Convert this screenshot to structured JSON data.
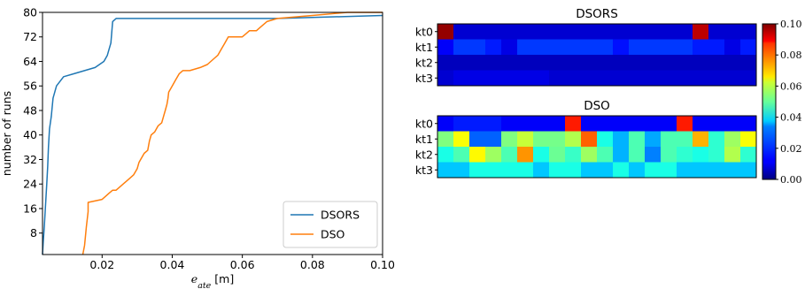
{
  "colors": {
    "dsors": "#1f77b4",
    "dso": "#ff7f0e",
    "axis": "#000000",
    "legend_border": "#cccccc"
  },
  "chart_data": [
    {
      "type": "line",
      "xlabel_math": "e",
      "xlabel_sub": "ate",
      "xlabel_unit": " [m]",
      "ylabel": "number of runs",
      "xlim": [
        0.003,
        0.1
      ],
      "ylim": [
        1,
        80
      ],
      "xticks": [
        0.02,
        0.04,
        0.06,
        0.08,
        0.1
      ],
      "xtick_labels": [
        "0.02",
        "0.04",
        "0.06",
        "0.08",
        "0.10"
      ],
      "yticks": [
        8,
        16,
        24,
        32,
        40,
        48,
        56,
        64,
        72,
        80
      ],
      "ytick_labels": [
        "8",
        "16",
        "24",
        "32",
        "40",
        "48",
        "56",
        "64",
        "72",
        "80"
      ],
      "grid": false,
      "legend_position": "bottom-right",
      "series": [
        {
          "name": "DSORS",
          "x": [
            0.003,
            0.0032,
            0.0035,
            0.0038,
            0.004,
            0.0042,
            0.0045,
            0.0047,
            0.005,
            0.0055,
            0.006,
            0.007,
            0.009,
            0.012,
            0.018,
            0.0205,
            0.021,
            0.0215,
            0.022,
            0.0225,
            0.023,
            0.024,
            0.05,
            0.07,
            0.1
          ],
          "y": [
            1,
            5,
            10,
            16,
            20,
            24,
            30,
            36,
            42,
            46,
            52,
            56,
            59,
            60,
            62,
            64,
            65,
            66,
            68,
            70,
            77,
            78,
            78,
            78,
            79
          ]
        },
        {
          "name": "DSO",
          "x": [
            0.0145,
            0.015,
            0.0155,
            0.016,
            0.016,
            0.02,
            0.021,
            0.022,
            0.023,
            0.024,
            0.026,
            0.027,
            0.028,
            0.029,
            0.0295,
            0.03,
            0.0305,
            0.031,
            0.032,
            0.033,
            0.0335,
            0.034,
            0.035,
            0.036,
            0.037,
            0.0375,
            0.038,
            0.0385,
            0.0388,
            0.039,
            0.04,
            0.041,
            0.042,
            0.043,
            0.045,
            0.048,
            0.05,
            0.052,
            0.053,
            0.054,
            0.055,
            0.056,
            0.06,
            0.061,
            0.062,
            0.064,
            0.065,
            0.067,
            0.07,
            0.08,
            0.09,
            0.1
          ],
          "y": [
            1,
            4,
            10,
            15,
            18,
            19,
            20,
            21,
            22,
            22,
            24,
            25,
            26,
            27,
            28,
            29,
            31,
            32,
            34,
            35,
            38,
            40,
            41,
            43,
            44,
            46,
            48,
            50,
            52,
            54,
            56,
            58,
            60,
            61,
            61,
            62,
            63,
            65,
            66,
            68,
            70,
            72,
            72,
            73,
            74,
            74,
            75,
            77,
            78,
            79,
            80,
            80
          ]
        }
      ]
    },
    {
      "type": "heatmap",
      "title": "DSORS",
      "rows": [
        "kt0",
        "kt1",
        "kt2",
        "kt3"
      ],
      "columns": 20,
      "values": [
        [
          0.098,
          0.008,
          0.008,
          0.008,
          0.008,
          0.008,
          0.008,
          0.008,
          0.008,
          0.008,
          0.008,
          0.008,
          0.008,
          0.008,
          0.008,
          0.008,
          0.094,
          0.008,
          0.008,
          0.008
        ],
        [
          0.012,
          0.018,
          0.018,
          0.015,
          0.01,
          0.018,
          0.018,
          0.018,
          0.018,
          0.018,
          0.018,
          0.014,
          0.018,
          0.018,
          0.018,
          0.018,
          0.015,
          0.015,
          0.01,
          0.015
        ],
        [
          0.006,
          0.006,
          0.006,
          0.006,
          0.006,
          0.006,
          0.006,
          0.006,
          0.006,
          0.006,
          0.006,
          0.006,
          0.006,
          0.006,
          0.006,
          0.006,
          0.006,
          0.006,
          0.006,
          0.006
        ],
        [
          0.008,
          0.01,
          0.01,
          0.01,
          0.01,
          0.01,
          0.01,
          0.008,
          0.008,
          0.008,
          0.008,
          0.008,
          0.008,
          0.008,
          0.008,
          0.008,
          0.008,
          0.008,
          0.008,
          0.008
        ]
      ]
    },
    {
      "type": "heatmap",
      "title": "DSO",
      "rows": [
        "kt0",
        "kt1",
        "kt2",
        "kt3"
      ],
      "columns": 20,
      "values": [
        [
          0.012,
          0.015,
          0.015,
          0.015,
          0.012,
          0.012,
          0.012,
          0.012,
          0.085,
          0.012,
          0.012,
          0.012,
          0.012,
          0.012,
          0.012,
          0.085,
          0.012,
          0.012,
          0.012,
          0.012
        ],
        [
          0.05,
          0.062,
          0.022,
          0.022,
          0.05,
          0.057,
          0.049,
          0.049,
          0.055,
          0.078,
          0.04,
          0.03,
          0.045,
          0.029,
          0.045,
          0.045,
          0.07,
          0.042,
          0.053,
          0.062
        ],
        [
          0.04,
          0.045,
          0.063,
          0.053,
          0.045,
          0.073,
          0.04,
          0.048,
          0.043,
          0.053,
          0.045,
          0.03,
          0.045,
          0.025,
          0.045,
          0.042,
          0.04,
          0.042,
          0.055,
          0.042
        ],
        [
          0.032,
          0.032,
          0.04,
          0.04,
          0.04,
          0.04,
          0.032,
          0.04,
          0.04,
          0.032,
          0.032,
          0.04,
          0.032,
          0.04,
          0.04,
          0.032,
          0.032,
          0.032,
          0.032,
          0.032
        ]
      ]
    },
    {
      "type": "colorbar",
      "range": [
        0.0,
        0.1
      ],
      "ticks": [
        0.0,
        0.02,
        0.04,
        0.06,
        0.08,
        0.1
      ],
      "tick_labels": [
        "0.00",
        "0.02",
        "0.04",
        "0.06",
        "0.08",
        "0.10"
      ],
      "colormap": "jet"
    }
  ]
}
